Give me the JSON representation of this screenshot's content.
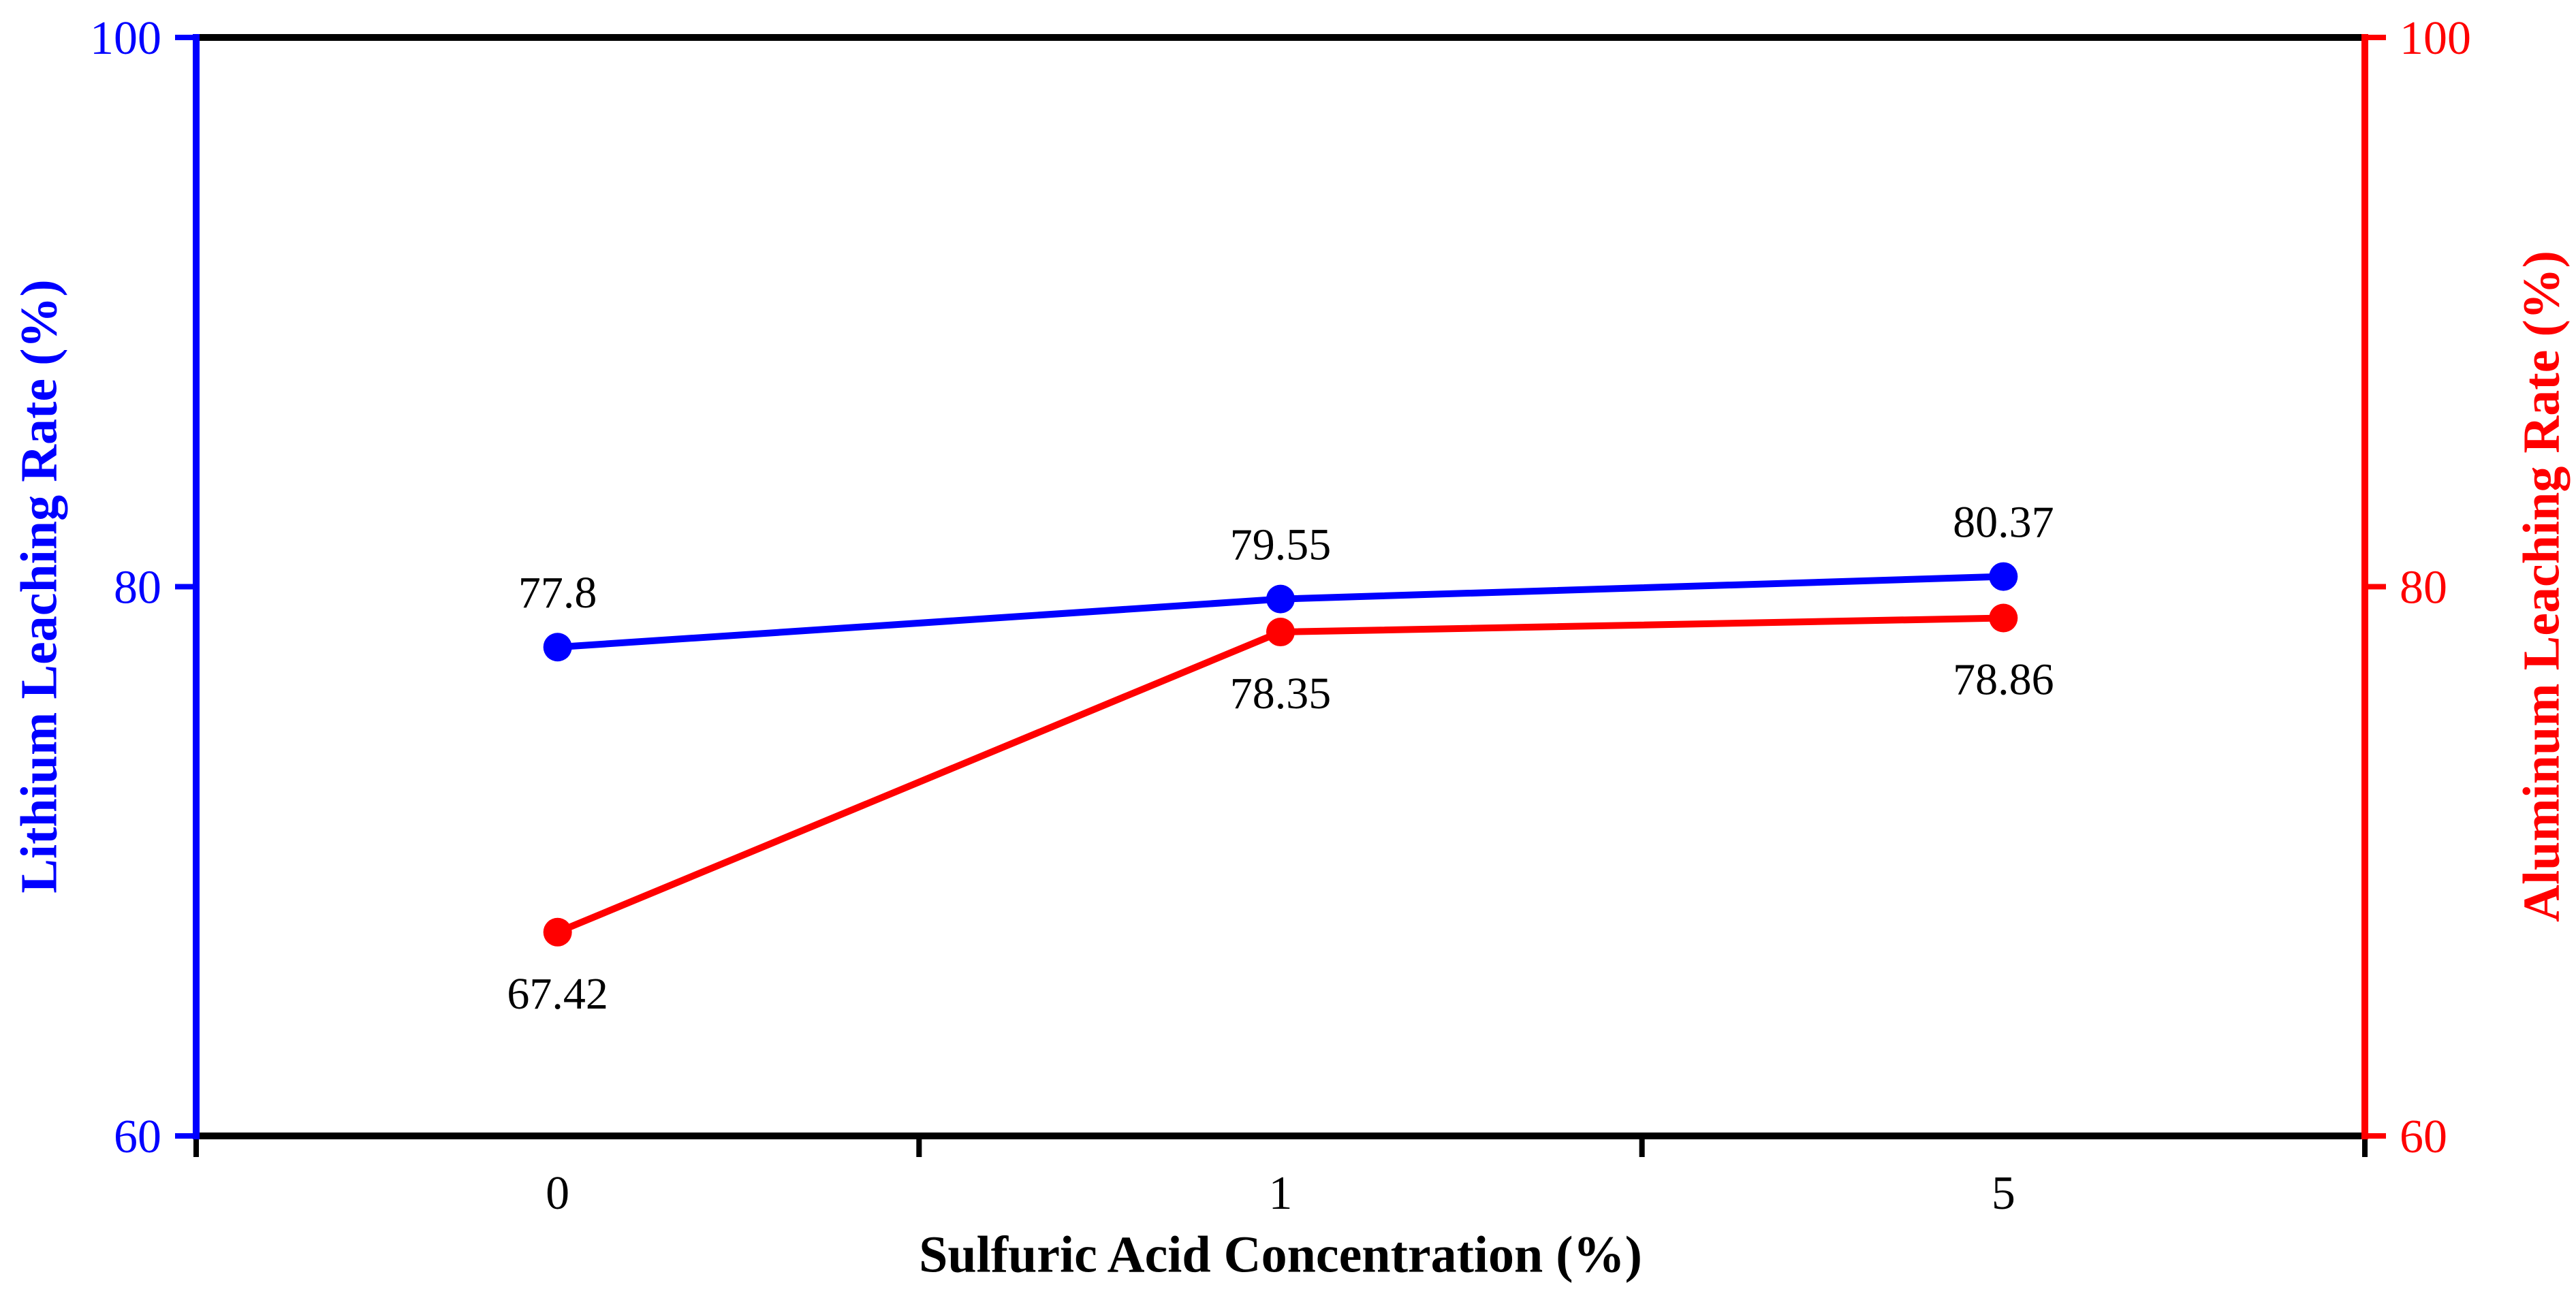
{
  "chart_data": {
    "type": "line",
    "title": "",
    "categories": [
      "0",
      "1",
      "5"
    ],
    "xlabel": "Sulfuric Acid Concentration (%)",
    "x_axis": {
      "color": "#000000",
      "tick_style": "between-categories",
      "tick_labels": [
        "0",
        "1",
        "5"
      ]
    },
    "y_left": {
      "label": "Lithium Leaching Rate (%)",
      "color": "#0000ff",
      "min": 60,
      "max": 100,
      "ticks": [
        60,
        80,
        100
      ]
    },
    "y_right": {
      "label": "Aluminum Leaching Rate (%)",
      "color": "#ff0000",
      "min": 60,
      "max": 100,
      "ticks": [
        60,
        80,
        100
      ]
    },
    "series": [
      {
        "name": "Lithium Leaching Rate",
        "axis": "left",
        "color": "#0000ff",
        "marker": "circle",
        "values": [
          77.8,
          79.55,
          80.37
        ],
        "labels": [
          "77.8",
          "79.55",
          "80.37"
        ],
        "label_position": "above"
      },
      {
        "name": "Aluminum Leaching Rate",
        "axis": "right",
        "color": "#ff0000",
        "marker": "circle",
        "values": [
          67.42,
          78.35,
          78.86
        ],
        "labels": [
          "67.42",
          "78.35",
          "78.86"
        ],
        "label_position": "below"
      }
    ],
    "legend": "none",
    "grid": false,
    "background": "#ffffff",
    "data_label_color": "#000000"
  }
}
